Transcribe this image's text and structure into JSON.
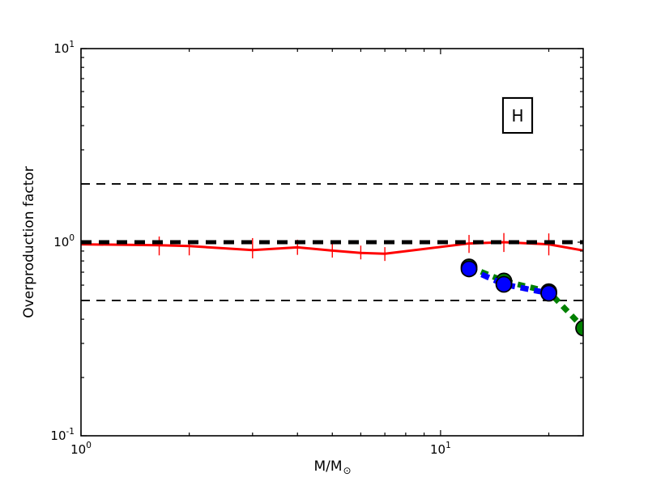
{
  "chart_data": {
    "type": "line",
    "title": "",
    "ylabel": "Overproduction factor",
    "xlabel": {
      "main": "M/M",
      "sub": "⊙"
    },
    "annotation": "H",
    "x_scale": "log",
    "y_scale": "log",
    "xlim": [
      1,
      24.93
    ],
    "ylim": [
      0.1,
      10
    ],
    "grid": false,
    "legend": "none",
    "frame_color": "#000000",
    "x_ticks": [
      {
        "value": 1,
        "base": "10",
        "exp": "0"
      },
      {
        "value": 10,
        "base": "10",
        "exp": "1"
      }
    ],
    "y_ticks": [
      {
        "value": 10,
        "base": "10",
        "exp": "1"
      },
      {
        "value": 1,
        "base": "10",
        "exp": "0"
      },
      {
        "value": 0.1,
        "base": "10",
        "exp": "-1"
      }
    ],
    "reference_lines": [
      {
        "y": 2.0,
        "style": "dashed-thin",
        "color": "#000000"
      },
      {
        "y": 1.0,
        "style": "dashed-thick",
        "color": "#000000"
      },
      {
        "y": 0.5,
        "style": "dashed-thin",
        "color": "#000000"
      }
    ],
    "series": [
      {
        "name": "red-solid-errorbar",
        "color": "#ff0000",
        "line": "solid",
        "marker": "none",
        "x": [
          1.0,
          1.65,
          2.0,
          3.0,
          4.0,
          5.0,
          6.0,
          7.0,
          12.0,
          15.0,
          20.0,
          25.0
        ],
        "y": [
          0.975,
          0.965,
          0.955,
          0.91,
          0.94,
          0.905,
          0.88,
          0.872,
          0.985,
          1.0,
          0.975,
          0.905
        ],
        "y_err_lo": [
          null,
          0.855,
          0.855,
          0.825,
          0.86,
          0.833,
          0.815,
          0.8,
          0.88,
          0.89,
          0.855,
          0.83
        ],
        "y_err_hi": [
          null,
          1.07,
          1.01,
          1.05,
          1.03,
          0.99,
          0.96,
          0.943,
          1.09,
          1.115,
          1.11,
          0.96
        ]
      },
      {
        "name": "green-dotted-circles",
        "color": "#008000",
        "line": "dashed",
        "marker": "circle",
        "x": [
          12.0,
          15.0,
          20.0,
          25.0
        ],
        "y": [
          0.745,
          0.63,
          0.555,
          0.36
        ]
      },
      {
        "name": "blue-dotted-circles",
        "color": "#0000ff",
        "line": "dashed",
        "marker": "circle",
        "x": [
          12.0,
          15.0,
          20.0
        ],
        "y": [
          0.728,
          0.606,
          0.545
        ]
      }
    ]
  }
}
